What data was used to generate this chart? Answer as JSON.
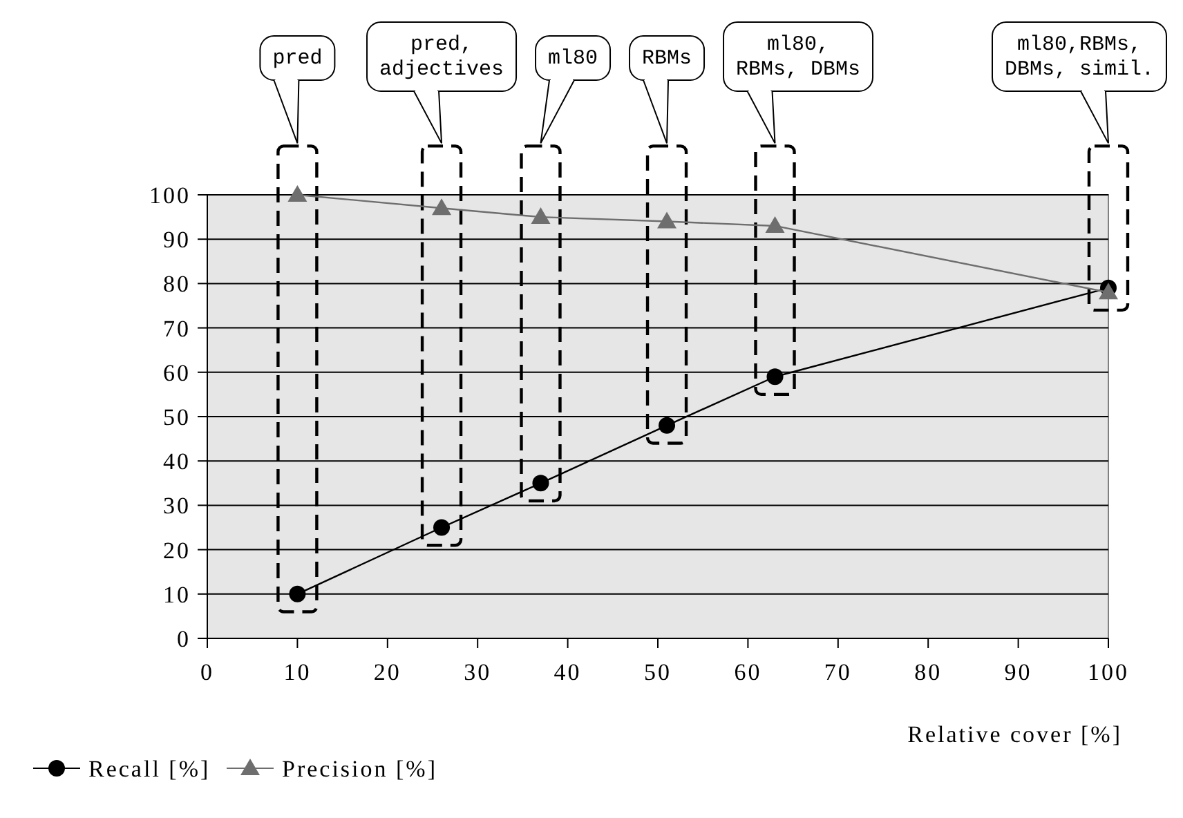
{
  "chart_data": {
    "type": "line",
    "xlabel": "Relative cover [%]",
    "x": [
      10,
      26,
      37,
      51,
      63,
      100
    ],
    "series": [
      {
        "name": "Recall [%]",
        "color": "#000000",
        "marker": "circle",
        "values": [
          10,
          25,
          35,
          48,
          59,
          79
        ]
      },
      {
        "name": "Precision [%]",
        "color": "#6e6e6e",
        "marker": "triangle",
        "values": [
          100,
          97,
          95,
          94,
          93,
          78
        ]
      }
    ],
    "xlim": [
      0,
      100
    ],
    "xticks": [
      0,
      10,
      20,
      30,
      40,
      50,
      60,
      70,
      80,
      90,
      100
    ],
    "ylim": [
      0,
      100
    ],
    "yticks": [
      0,
      10,
      20,
      30,
      40,
      50,
      60,
      70,
      80,
      90,
      100
    ],
    "grid": "y",
    "legend": "bottom left",
    "line_style": "solid",
    "annotations": [
      "pred",
      "pred,\nadjectives",
      "ml80",
      "RBMs",
      "ml80,\nRBMs, DBMs",
      "ml80,RBMs,\nDBMs, simil."
    ]
  }
}
